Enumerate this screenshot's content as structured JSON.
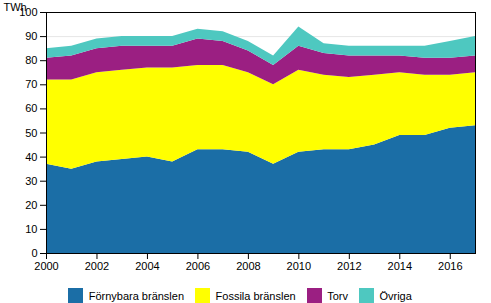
{
  "chart_data": {
    "type": "area",
    "stacked": true,
    "x": [
      2000,
      2001,
      2002,
      2003,
      2004,
      2005,
      2006,
      2007,
      2008,
      2009,
      2010,
      2011,
      2012,
      2013,
      2014,
      2015,
      2016,
      2017
    ],
    "series": [
      {
        "name": "Förnybara bränslen",
        "color": "#1b6ea6",
        "values": [
          37,
          35,
          38,
          39,
          40,
          38,
          43,
          43,
          42,
          37,
          42,
          43,
          43,
          45,
          49,
          49,
          52,
          53
        ]
      },
      {
        "name": "Fossila bränslen",
        "color": "#ffff00",
        "values": [
          35,
          37,
          37,
          37,
          37,
          39,
          35,
          35,
          33,
          33,
          34,
          31,
          30,
          29,
          26,
          25,
          22,
          22
        ]
      },
      {
        "name": "Torv",
        "color": "#9b1f82",
        "values": [
          9,
          10,
          10,
          10,
          9,
          9,
          11,
          10,
          9,
          8,
          10,
          9,
          9,
          8,
          7,
          7,
          7,
          7
        ]
      },
      {
        "name": "Övriga",
        "color": "#4ec8c0",
        "values": [
          4,
          4,
          4,
          4,
          4,
          4,
          4,
          4,
          4,
          4,
          8,
          4,
          4,
          4,
          4,
          5,
          7,
          8
        ]
      }
    ],
    "ylabel": "TWh",
    "xlim": [
      2000,
      2017
    ],
    "xticks": [
      2000,
      2002,
      2004,
      2006,
      2008,
      2010,
      2012,
      2014,
      2016
    ],
    "ylim": [
      0,
      100
    ],
    "yticks": [
      0,
      10,
      20,
      30,
      40,
      50,
      60,
      70,
      80,
      90,
      100
    ],
    "grid": true,
    "legend": "bottom"
  }
}
